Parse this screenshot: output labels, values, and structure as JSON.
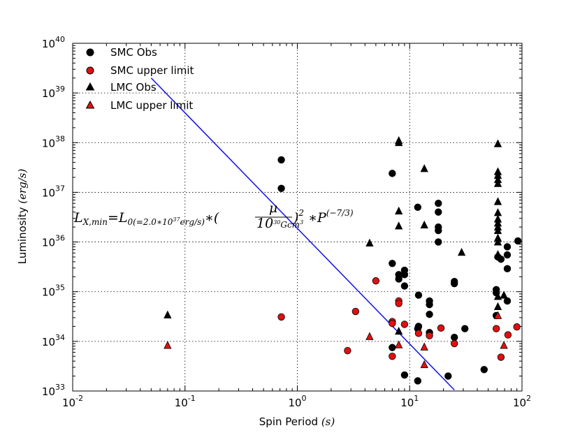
{
  "chart_data": {
    "type": "scatter",
    "xscale": "log",
    "yscale": "log",
    "xlim": [
      0.01,
      100
    ],
    "ylim": [
      1e+33,
      1e+40
    ],
    "grid": true,
    "xlabel": "Spin Period (s)",
    "ylabel": "Luminosity (erg/s)",
    "xticks": [
      {
        "value": 0.01,
        "base": "10",
        "exp": "-2"
      },
      {
        "value": 0.1,
        "base": "10",
        "exp": "-1"
      },
      {
        "value": 1,
        "base": "10",
        "exp": "0"
      },
      {
        "value": 10,
        "base": "10",
        "exp": "1"
      },
      {
        "value": 100,
        "base": "10",
        "exp": "2"
      }
    ],
    "yticks": [
      {
        "value": 1e+33,
        "base": "10",
        "exp": "33"
      },
      {
        "value": 1e+34,
        "base": "10",
        "exp": "34"
      },
      {
        "value": 1e+35,
        "base": "10",
        "exp": "35"
      },
      {
        "value": 1e+36,
        "base": "10",
        "exp": "36"
      },
      {
        "value": 1e+37,
        "base": "10",
        "exp": "37"
      },
      {
        "value": 1e+38,
        "base": "10",
        "exp": "38"
      },
      {
        "value": 1e+39,
        "base": "10",
        "exp": "39"
      },
      {
        "value": 1e+40,
        "base": "10",
        "exp": "40"
      }
    ],
    "legend_position": "top-left",
    "series": [
      {
        "name": "SMC Obs",
        "marker": "circle",
        "color": "#000000",
        "points": [
          [
            0.72,
            4.5e+37
          ],
          [
            0.72,
            1.2e+37
          ],
          [
            7.0,
            2.4e+37
          ],
          [
            7.0,
            3.7e+35
          ],
          [
            7.0,
            7.5e+33
          ],
          [
            8.0,
            2.2e+35
          ],
          [
            8.0,
            1.8e+35
          ],
          [
            9.0,
            2.7e+35
          ],
          [
            9.0,
            2.2e+35
          ],
          [
            9.0,
            1.3e+35
          ],
          [
            9.0,
            2.1e+33
          ],
          [
            11.8,
            5e+36
          ],
          [
            12.0,
            8.5e+34
          ],
          [
            12.0,
            2e+34
          ],
          [
            11.8,
            1.8e+34
          ],
          [
            11.8,
            1.6e+33
          ],
          [
            15.0,
            6.5e+34
          ],
          [
            15.0,
            5.5e+34
          ],
          [
            15.0,
            3.5e+34
          ],
          [
            15.0,
            1.5e+34
          ],
          [
            18.0,
            6e+36
          ],
          [
            18.0,
            4e+36
          ],
          [
            18.0,
            2e+36
          ],
          [
            18.0,
            1.7e+36
          ],
          [
            18.0,
            1e+36
          ],
          [
            22.0,
            2e+33
          ],
          [
            25.0,
            1.6e+35
          ],
          [
            25.0,
            1.45e+35
          ],
          [
            25.0,
            1.2e+34
          ],
          [
            31.0,
            1.8e+34
          ],
          [
            46.0,
            2.7e+33
          ],
          [
            59.0,
            1.1e+35
          ],
          [
            59.0,
            9.5e+34
          ],
          [
            59.0,
            3.3e+34
          ],
          [
            61.0,
            5e+35
          ],
          [
            65.0,
            4.5e+35
          ],
          [
            74.0,
            8e+35
          ],
          [
            74.0,
            5.5e+35
          ],
          [
            74.0,
            2.9e+35
          ],
          [
            74.0,
            6.5e+34
          ],
          [
            92.0,
            1.05e+36
          ]
        ]
      },
      {
        "name": "SMC upper limit",
        "marker": "circle",
        "color": "#e01010",
        "points": [
          [
            0.72,
            3.1e+34
          ],
          [
            2.8,
            6.5e+33
          ],
          [
            3.3,
            4e+34
          ],
          [
            5.0,
            1.65e+35
          ],
          [
            7.0,
            2.5e+34
          ],
          [
            7.0,
            2.3e+34
          ],
          [
            7.0,
            5e+33
          ],
          [
            8.0,
            6.5e+34
          ],
          [
            8.0,
            5.8e+34
          ],
          [
            9.0,
            2.2e+34
          ],
          [
            12.0,
            1.45e+34
          ],
          [
            15.0,
            1.3e+34
          ],
          [
            19.0,
            1.85e+34
          ],
          [
            25.0,
            9e+33
          ],
          [
            59.0,
            1.8e+34
          ],
          [
            65.0,
            4.8e+33
          ],
          [
            75.0,
            1.35e+34
          ],
          [
            90.0,
            1.95e+34
          ]
        ]
      },
      {
        "name": "LMC Obs",
        "marker": "triangle",
        "color": "#000000",
        "points": [
          [
            0.07,
            3.4e+34
          ],
          [
            4.4,
            9.5e+35
          ],
          [
            8.0,
            1.1e+38
          ],
          [
            8.0,
            1e+38
          ],
          [
            8.0,
            4.2e+36
          ],
          [
            8.0,
            2.1e+36
          ],
          [
            8.0,
            1.6e+34
          ],
          [
            13.5,
            3e+37
          ],
          [
            13.5,
            2.2e+36
          ],
          [
            29.0,
            6.2e+35
          ],
          [
            61.0,
            9.5e+37
          ],
          [
            61.0,
            2.6e+37
          ],
          [
            61.0,
            2.2e+37
          ],
          [
            61.0,
            1.8e+37
          ],
          [
            61.0,
            1.5e+37
          ],
          [
            61.0,
            6.5e+36
          ],
          [
            61.0,
            3.9e+36
          ],
          [
            61.0,
            2.9e+36
          ],
          [
            61.0,
            2.4e+36
          ],
          [
            61.0,
            2e+36
          ],
          [
            61.0,
            1.7e+36
          ],
          [
            61.0,
            1.2e+36
          ],
          [
            61.0,
            1e+36
          ],
          [
            61.0,
            5.6e+35
          ],
          [
            61.0,
            8e+34
          ],
          [
            61.0,
            5e+34
          ],
          [
            69.0,
            8.5e+34
          ]
        ]
      },
      {
        "name": "LMC upper limit",
        "marker": "triangle",
        "color": "#e01010",
        "points": [
          [
            0.07,
            8.3e+33
          ],
          [
            4.4,
            1.25e+34
          ],
          [
            8.0,
            8.5e+33
          ],
          [
            13.5,
            7.7e+33
          ],
          [
            13.5,
            3.4e+33
          ],
          [
            61.0,
            3.3e+34
          ],
          [
            69.0,
            8.3e+33
          ]
        ]
      }
    ],
    "line": {
      "color": "#1010e8",
      "points": [
        [
          0.05,
          2e+39
        ],
        [
          25,
          1.05e+33
        ]
      ]
    },
    "annotation": "L_{X,min} = L_{0(=2.0*10^{37} erg/s)} * (μ / 10^{30} Gcm^3)^2 * P^{(-7/3)}"
  }
}
